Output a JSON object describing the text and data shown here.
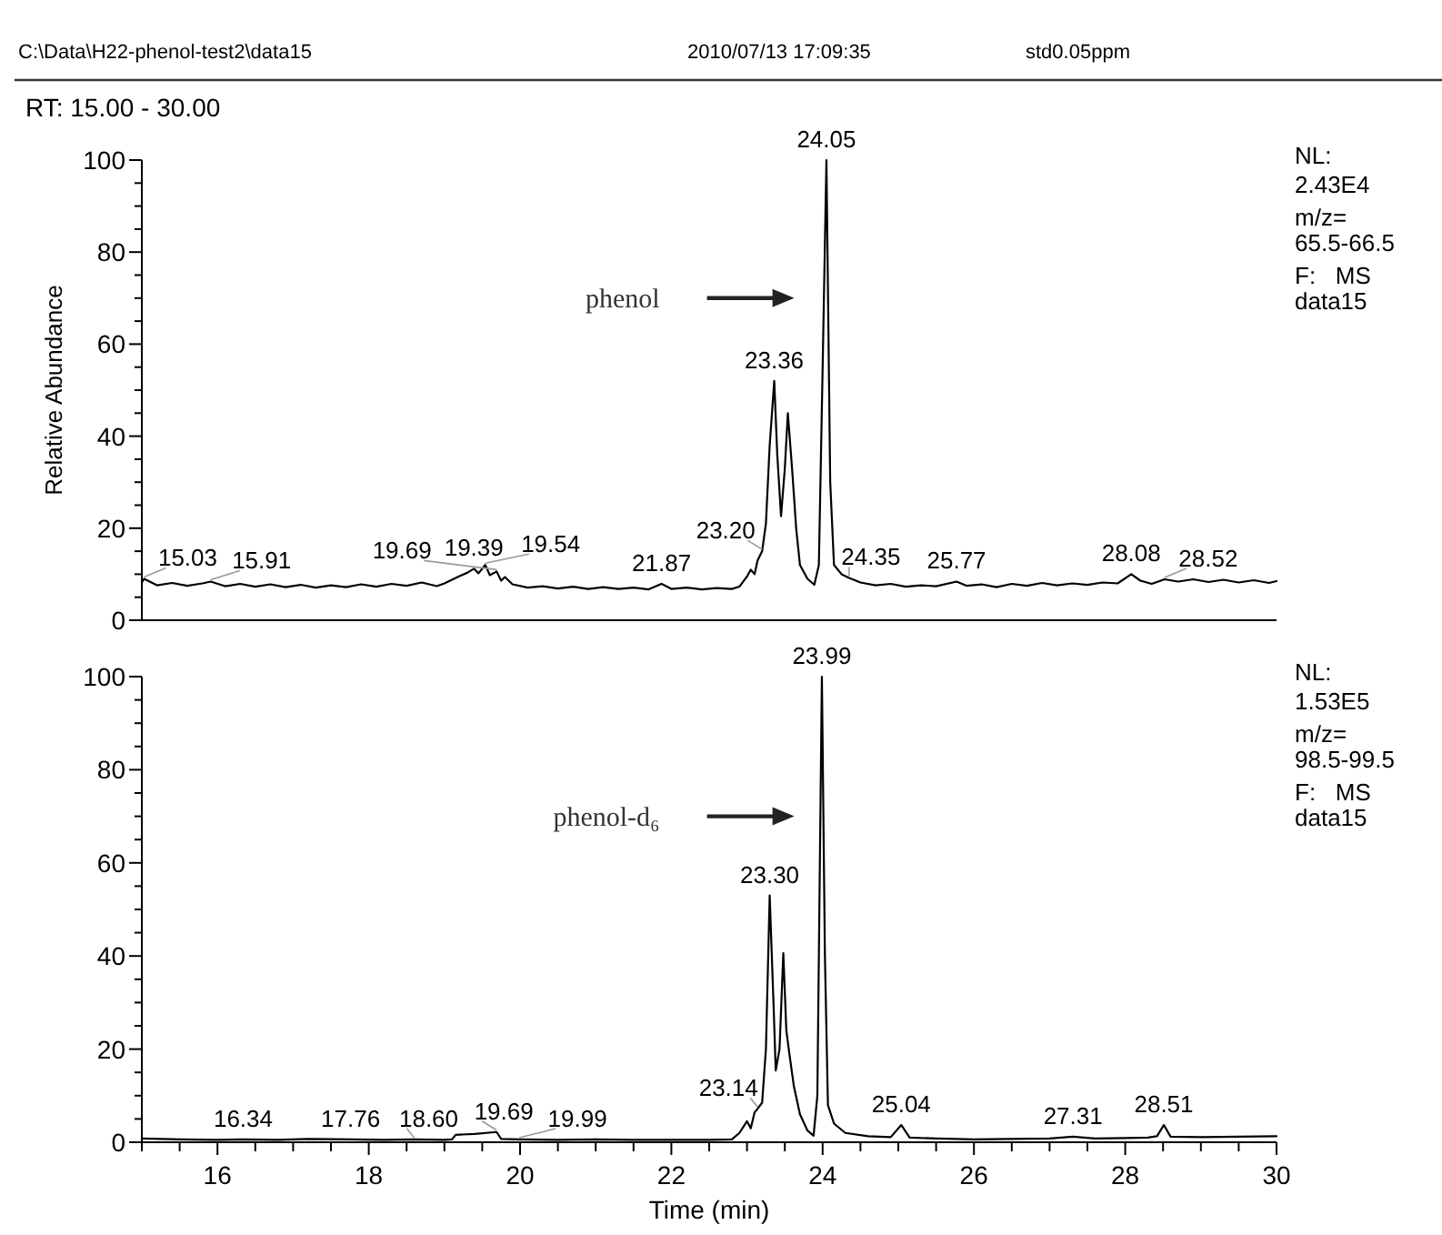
{
  "chart_data": [
    {
      "type": "other",
      "annotations": [
        "C:\\Data\\H22-phenol-test2\\data15",
        "2010/07/13 17:09:35",
        "std0.05ppm",
        "RT: 15.00 - 30.00"
      ]
    },
    {
      "type": "line",
      "ylabel": "Relative Abundance",
      "xlim": [
        15,
        30
      ],
      "ylim": [
        0,
        100
      ],
      "tick_labels": "y",
      "yticks": [
        0,
        {
          "value": 5,
          "label": null
        },
        {
          "value": 10,
          "label": null
        },
        {
          "value": 15,
          "label": null
        },
        20,
        {
          "value": 25,
          "label": null
        },
        {
          "value": 30,
          "label": null
        },
        {
          "value": 35,
          "label": null
        },
        40,
        {
          "value": 45,
          "label": null
        },
        {
          "value": 50,
          "label": null
        },
        {
          "value": 55,
          "label": null
        },
        60,
        {
          "value": 65,
          "label": null
        },
        {
          "value": 70,
          "label": null
        },
        {
          "value": 75,
          "label": null
        },
        80,
        {
          "value": 85,
          "label": null
        },
        {
          "value": 90,
          "label": null
        },
        {
          "value": 95,
          "label": null
        },
        100
      ],
      "series": [
        {
          "color": "#000000",
          "x": [
            15.0,
            15.03,
            15.2,
            15.4,
            15.6,
            15.8,
            15.91,
            16.1,
            16.3,
            16.5,
            16.7,
            16.9,
            17.1,
            17.3,
            17.5,
            17.7,
            17.9,
            18.1,
            18.3,
            18.5,
            18.7,
            18.9,
            19.0,
            19.1,
            19.2,
            19.3,
            19.39,
            19.45,
            19.54,
            19.6,
            19.69,
            19.75,
            19.8,
            19.9,
            20.1,
            20.3,
            20.5,
            20.7,
            20.9,
            21.1,
            21.3,
            21.5,
            21.7,
            21.87,
            22.0,
            22.2,
            22.4,
            22.6,
            22.8,
            22.9,
            23.0,
            23.05,
            23.1,
            23.14,
            23.2,
            23.25,
            23.3,
            23.36,
            23.4,
            23.45,
            23.5,
            23.54,
            23.6,
            23.65,
            23.7,
            23.8,
            23.89,
            23.95,
            24.0,
            24.05,
            24.1,
            24.15,
            24.25,
            24.35,
            24.5,
            24.7,
            24.9,
            25.1,
            25.3,
            25.5,
            25.77,
            25.9,
            26.1,
            26.3,
            26.5,
            26.7,
            26.9,
            27.1,
            27.3,
            27.5,
            27.7,
            27.9,
            28.08,
            28.2,
            28.35,
            28.52,
            28.7,
            28.9,
            29.1,
            29.3,
            29.5,
            29.7,
            29.9,
            30.0
          ],
          "values": [
            8.2,
            9,
            7.6,
            8.1,
            7.5,
            8.0,
            8.4,
            7.4,
            7.9,
            7.3,
            7.8,
            7.2,
            7.7,
            7.1,
            7.6,
            7.2,
            7.8,
            7.3,
            7.9,
            7.5,
            8.2,
            7.4,
            8.0,
            8.8,
            9.6,
            10.3,
            11.2,
            10.2,
            12.0,
            9.8,
            10.6,
            8.6,
            9.4,
            7.8,
            7.1,
            7.4,
            6.9,
            7.3,
            6.8,
            7.2,
            6.8,
            7.1,
            6.7,
            7.9,
            6.8,
            7.1,
            6.7,
            7.0,
            6.8,
            7.3,
            9.5,
            11,
            10,
            13,
            15,
            21,
            38,
            52,
            36,
            22.6,
            33,
            45,
            32,
            20,
            12,
            9,
            7.7,
            12,
            55,
            100,
            30,
            12,
            10,
            9.2,
            8.2,
            7.6,
            7.9,
            7.3,
            7.6,
            7.4,
            8.4,
            7.5,
            7.8,
            7.2,
            7.9,
            7.5,
            8.1,
            7.6,
            8.0,
            7.7,
            8.2,
            8.0,
            10.0,
            8.6,
            7.9,
            8.9,
            8.4,
            8.9,
            8.3,
            8.8,
            8.2,
            8.7,
            8.1,
            8.5
          ]
        }
      ],
      "annotations": [
        "phenol",
        {
          "text": "15.03",
          "x": 15.03,
          "y": 9
        },
        {
          "text": "15.91",
          "x": 15.91,
          "y": 8.4
        },
        {
          "text": "19.39",
          "x": 19.39,
          "y": 11.2
        },
        {
          "text": "19.54",
          "x": 19.54,
          "y": 12
        },
        {
          "text": "19.69",
          "x": 19.69,
          "y": 10.6
        },
        {
          "text": "21.87",
          "x": 21.87,
          "y": 7.9
        },
        {
          "text": "23.20",
          "x": 23.2,
          "y": 15
        },
        {
          "text": "23.36",
          "x": 23.36,
          "y": 52
        },
        {
          "text": "24.05",
          "x": 24.05,
          "y": 100
        },
        {
          "text": "24.35",
          "x": 24.35,
          "y": 9.2
        },
        {
          "text": "25.77",
          "x": 25.77,
          "y": 8.4
        },
        {
          "text": "28.08",
          "x": 28.08,
          "y": 10
        },
        {
          "text": "28.52",
          "x": 28.52,
          "y": 8.9
        },
        "NL:",
        "2.43E4",
        "m/z=",
        "65.5-66.5",
        "F:   MS",
        "data15"
      ]
    },
    {
      "type": "line",
      "xlabel": "Time (min)",
      "xlim": [
        15,
        30
      ],
      "ylim": [
        0,
        100
      ],
      "xticks": [
        {
          "value": 15,
          "label": null
        },
        {
          "value": 15.5,
          "label": null
        },
        16,
        {
          "value": 16.5,
          "label": null
        },
        {
          "value": 17,
          "label": null
        },
        {
          "value": 17.5,
          "label": null
        },
        18,
        {
          "value": 18.5,
          "label": null
        },
        {
          "value": 19,
          "label": null
        },
        {
          "value": 19.5,
          "label": null
        },
        20,
        {
          "value": 20.5,
          "label": null
        },
        {
          "value": 21,
          "label": null
        },
        {
          "value": 21.5,
          "label": null
        },
        22,
        {
          "value": 22.5,
          "label": null
        },
        {
          "value": 23,
          "label": null
        },
        {
          "value": 23.5,
          "label": null
        },
        24,
        {
          "value": 24.5,
          "label": null
        },
        {
          "value": 25,
          "label": null
        },
        {
          "value": 25.5,
          "label": null
        },
        26,
        {
          "value": 26.5,
          "label": null
        },
        {
          "value": 27,
          "label": null
        },
        {
          "value": 27.5,
          "label": null
        },
        28,
        {
          "value": 28.5,
          "label": null
        },
        {
          "value": 29,
          "label": null
        },
        {
          "value": 29.5,
          "label": null
        },
        30
      ],
      "yticks": [
        0,
        {
          "value": 5,
          "label": null
        },
        {
          "value": 10,
          "label": null
        },
        {
          "value": 15,
          "label": null
        },
        20,
        {
          "value": 25,
          "label": null
        },
        {
          "value": 30,
          "label": null
        },
        {
          "value": 35,
          "label": null
        },
        40,
        {
          "value": 45,
          "label": null
        },
        {
          "value": 50,
          "label": null
        },
        {
          "value": 55,
          "label": null
        },
        60,
        {
          "value": 65,
          "label": null
        },
        {
          "value": 70,
          "label": null
        },
        {
          "value": 75,
          "label": null
        },
        80,
        {
          "value": 85,
          "label": null
        },
        {
          "value": 90,
          "label": null
        },
        {
          "value": 95,
          "label": null
        },
        100
      ],
      "series": [
        {
          "color": "#000000",
          "x": [
            15.0,
            15.5,
            16.0,
            16.34,
            16.8,
            17.2,
            17.76,
            18.2,
            18.6,
            19.0,
            19.1,
            19.15,
            19.4,
            19.69,
            19.75,
            19.99,
            20.5,
            21.0,
            21.5,
            22.0,
            22.5,
            22.8,
            22.9,
            23.0,
            23.05,
            23.1,
            23.14,
            23.2,
            23.25,
            23.3,
            23.35,
            23.38,
            23.43,
            23.48,
            23.52,
            23.56,
            23.62,
            23.7,
            23.8,
            23.88,
            23.93,
            23.99,
            24.03,
            24.07,
            24.15,
            24.3,
            24.6,
            24.9,
            25.04,
            25.15,
            25.5,
            26.0,
            26.5,
            27.0,
            27.31,
            27.6,
            28.0,
            28.3,
            28.42,
            28.51,
            28.6,
            29.0,
            29.5,
            30.0
          ],
          "values": [
            0.8,
            0.6,
            0.5,
            0.6,
            0.5,
            0.7,
            0.6,
            0.5,
            0.6,
            0.5,
            0.6,
            1.6,
            1.8,
            2.2,
            0.7,
            0.6,
            0.5,
            0.6,
            0.5,
            0.5,
            0.5,
            0.6,
            2,
            4.5,
            3,
            6.4,
            7.2,
            8.5,
            20,
            53,
            30,
            15.4,
            20,
            40.6,
            24,
            19,
            12,
            6,
            2.5,
            1.4,
            10,
            100,
            40,
            8,
            4,
            2,
            1.3,
            1.1,
            3.7,
            1,
            0.8,
            0.6,
            0.7,
            0.8,
            1.2,
            0.8,
            0.9,
            1.0,
            1.3,
            3.7,
            1.2,
            1.1,
            1.2,
            1.3
          ]
        }
      ],
      "annotations": [
        "phenol-d₆",
        {
          "text": "16.34",
          "x": 16.34,
          "y": 0.6
        },
        {
          "text": "17.76",
          "x": 17.76,
          "y": 0.6
        },
        {
          "text": "18.60",
          "x": 18.6,
          "y": 0.6
        },
        {
          "text": "19.69",
          "x": 19.69,
          "y": 2.2
        },
        {
          "text": "19.99",
          "x": 19.99,
          "y": 0.6
        },
        {
          "text": "23.14",
          "x": 23.14,
          "y": 7.2
        },
        {
          "text": "23.30",
          "x": 23.3,
          "y": 53
        },
        {
          "text": "23.99",
          "x": 23.99,
          "y": 100
        },
        {
          "text": "25.04",
          "x": 25.04,
          "y": 3.7
        },
        {
          "text": "27.31",
          "x": 27.31,
          "y": 1.2
        },
        {
          "text": "28.51",
          "x": 28.51,
          "y": 3.7
        },
        "NL:",
        "1.53E5",
        "m/z=",
        "98.5-99.5",
        "F:   MS",
        "data15"
      ]
    }
  ]
}
